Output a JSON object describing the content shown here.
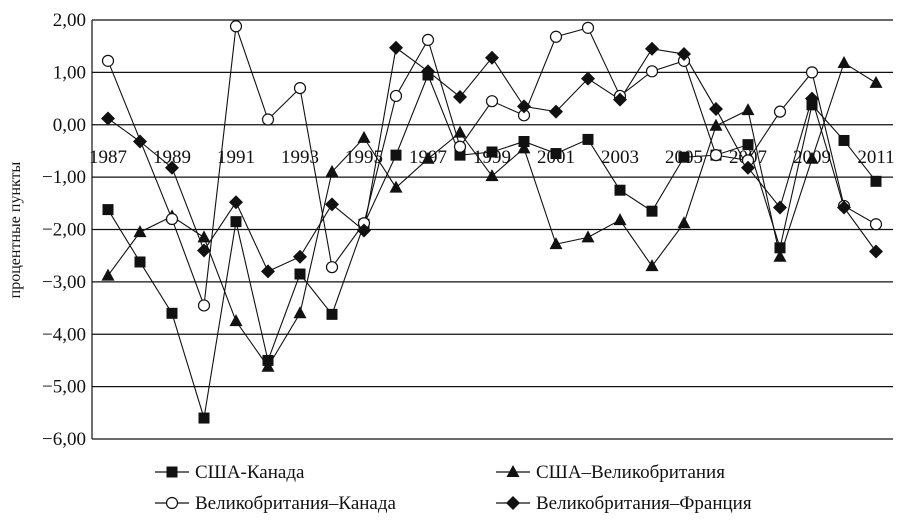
{
  "chart_data": {
    "type": "line",
    "title": "",
    "xlabel": "",
    "ylabel": "процентные пункты",
    "ylim": [
      -6,
      2
    ],
    "yticks": [
      "2,00",
      "1,00",
      "0,00",
      "−1,00",
      "−2,00",
      "−3,00",
      "−4,00",
      "−5,00",
      "−6,00"
    ],
    "ytick_values": [
      2,
      1,
      0,
      -1,
      -2,
      -3,
      -4,
      -5,
      -6
    ],
    "xticks": [
      "1987",
      "1989",
      "1991",
      "1993",
      "1995",
      "1997",
      "1999",
      "2001",
      "2003",
      "2005",
      "2007",
      "2009",
      "2011"
    ],
    "xtick_values": [
      1987,
      1989,
      1991,
      1993,
      1995,
      1997,
      1999,
      2001,
      2003,
      2005,
      2007,
      2009,
      2011
    ],
    "grid": "horizontal",
    "legend_position": "bottom",
    "x": [
      1987,
      1988,
      1989,
      1990,
      1991,
      1992,
      1993,
      1994,
      1995,
      1996,
      1997,
      1998,
      1999,
      2000,
      2001,
      2002,
      2003,
      2004,
      2005,
      2006,
      2007,
      2008,
      2009,
      2010,
      2011
    ],
    "series": [
      {
        "name": "США-Канада",
        "marker": "square-filled",
        "values": [
          -1.62,
          -2.62,
          -3.6,
          -5.6,
          -1.85,
          -4.5,
          -2.85,
          -3.62,
          -1.9,
          -0.58,
          0.95,
          -0.58,
          -0.52,
          -0.32,
          -0.55,
          -0.28,
          -1.25,
          -1.65,
          -0.62,
          -0.58,
          -0.38,
          -2.35,
          0.38,
          -0.3,
          -1.08
        ]
      },
      {
        "name": "США–Великобритания",
        "marker": "triangle-filled",
        "values": [
          -2.88,
          -2.05,
          -1.75,
          -2.15,
          -3.75,
          -4.62,
          -3.6,
          -0.9,
          -0.25,
          -1.2,
          -0.65,
          -0.15,
          -0.98,
          -0.45,
          -2.28,
          -2.15,
          -1.82,
          -2.7,
          -1.88,
          -0.02,
          0.28,
          -2.52,
          -0.65,
          1.18,
          0.8
        ]
      },
      {
        "name": "Великобритания–Канада",
        "marker": "circle-open",
        "values": [
          1.22,
          null,
          -1.8,
          -3.45,
          1.88,
          0.1,
          0.7,
          -2.72,
          -1.88,
          0.55,
          1.62,
          -0.42,
          0.45,
          0.18,
          1.68,
          1.85,
          0.55,
          1.02,
          1.22,
          -0.58,
          -0.68,
          0.25,
          1.0,
          -1.55,
          -1.9
        ]
      },
      {
        "name": "Великобритания–Франция",
        "marker": "diamond-filled",
        "values": [
          0.12,
          -0.32,
          -0.82,
          -2.4,
          -1.48,
          -2.8,
          -2.52,
          -1.52,
          -2.02,
          1.47,
          1.02,
          0.53,
          1.28,
          0.35,
          0.25,
          0.88,
          0.48,
          1.45,
          1.35,
          0.3,
          -0.82,
          -1.58,
          0.5,
          -1.58,
          -2.42
        ]
      }
    ]
  },
  "legend": [
    {
      "label": "США-Канада",
      "marker": "square-filled"
    },
    {
      "label": "США–Великобритания",
      "marker": "triangle-filled"
    },
    {
      "label": "Великобритания–Канада",
      "marker": "circle-open"
    },
    {
      "label": "Великобритания–Франция",
      "marker": "diamond-filled"
    }
  ],
  "colors": {
    "ink": "#111111",
    "grid": "#111111",
    "background": "#ffffff"
  }
}
